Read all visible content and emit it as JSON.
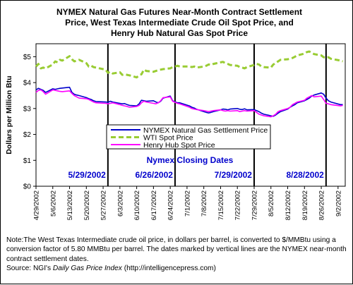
{
  "chart_data": {
    "type": "line",
    "title_lines": [
      "NYMEX Natural Gas Futures Near-Month Contract Settlement",
      "Price, West Texas Intermediate Crude Oil Spot Price, and",
      "Henry Hub Natural Gas Spot Price"
    ],
    "ylabel": "Dollars per Million Btu",
    "ylim": [
      0,
      5.5
    ],
    "y_ticks": [
      "$0",
      "$1",
      "$2",
      "$3",
      "$4",
      "$5"
    ],
    "y_tick_values": [
      0,
      1,
      2,
      3,
      4,
      5
    ],
    "x_tick_labels": [
      "4/29/2002",
      "5/6/2002",
      "5/13/2002",
      "5/20/2002",
      "5/27/2002",
      "6/3/2002",
      "6/10/2002",
      "6/17/2002",
      "6/24/2002",
      "7/1/2002",
      "7/8/2002",
      "7/15/2002",
      "7/22/2002",
      "7/29/2002",
      "8/5/2002",
      "8/12/2002",
      "8/19/2002",
      "8/26/2002",
      "9/2/2002"
    ],
    "x_range": [
      "4/29/2002",
      "9/5/2002"
    ],
    "x_tick_days": [
      0,
      7,
      14,
      21,
      28,
      35,
      42,
      49,
      56,
      63,
      70,
      77,
      84,
      91,
      98,
      105,
      112,
      119,
      126
    ],
    "x_end_day": 129,
    "grid": false,
    "legend_position": "center",
    "series": [
      {
        "name": "NYMEX Natural Gas Settlement Price",
        "color": "#0000cc",
        "style": "solid",
        "points": [
          [
            0,
            3.72
          ],
          [
            1,
            3.78
          ],
          [
            2,
            3.74
          ],
          [
            3,
            3.7
          ],
          [
            4,
            3.62
          ],
          [
            7,
            3.76
          ],
          [
            8,
            3.74
          ],
          [
            9,
            3.76
          ],
          [
            10,
            3.78
          ],
          [
            11,
            3.79
          ],
          [
            14,
            3.82
          ],
          [
            15,
            3.62
          ],
          [
            16,
            3.55
          ],
          [
            17,
            3.52
          ],
          [
            18,
            3.5
          ],
          [
            21,
            3.42
          ],
          [
            22,
            3.38
          ],
          [
            23,
            3.35
          ],
          [
            24,
            3.3
          ],
          [
            25,
            3.27
          ],
          [
            29,
            3.25
          ],
          [
            30,
            3.24
          ],
          [
            31,
            3.28
          ],
          [
            32,
            3.25
          ],
          [
            35,
            3.2
          ],
          [
            36,
            3.18
          ],
          [
            37,
            3.19
          ],
          [
            38,
            3.15
          ],
          [
            39,
            3.12
          ],
          [
            42,
            3.1
          ],
          [
            43,
            3.18
          ],
          [
            44,
            3.32
          ],
          [
            45,
            3.3
          ],
          [
            46,
            3.28
          ],
          [
            49,
            3.3
          ],
          [
            50,
            3.25
          ],
          [
            51,
            3.22
          ],
          [
            52,
            3.28
          ],
          [
            53,
            3.4
          ],
          [
            56,
            3.48
          ],
          [
            57,
            3.3
          ],
          [
            58,
            3.26
          ],
          [
            59,
            3.22
          ],
          [
            60,
            3.22
          ],
          [
            64,
            3.1
          ],
          [
            65,
            3.05
          ],
          [
            66,
            3.02
          ],
          [
            67,
            2.97
          ],
          [
            70,
            2.88
          ],
          [
            71,
            2.85
          ],
          [
            72,
            2.83
          ],
          [
            73,
            2.85
          ],
          [
            74,
            2.88
          ],
          [
            77,
            2.95
          ],
          [
            78,
            2.98
          ],
          [
            79,
            2.97
          ],
          [
            80,
            2.95
          ],
          [
            81,
            2.98
          ],
          [
            84,
            3.0
          ],
          [
            85,
            2.97
          ],
          [
            86,
            2.96
          ],
          [
            87,
            2.99
          ],
          [
            88,
            2.95
          ],
          [
            91,
            2.96
          ],
          [
            92,
            2.92
          ],
          [
            93,
            2.88
          ],
          [
            94,
            2.82
          ],
          [
            95,
            2.78
          ],
          [
            98,
            2.72
          ],
          [
            99,
            2.7
          ],
          [
            100,
            2.75
          ],
          [
            101,
            2.82
          ],
          [
            102,
            2.88
          ],
          [
            105,
            2.98
          ],
          [
            106,
            3.05
          ],
          [
            107,
            3.1
          ],
          [
            108,
            3.15
          ],
          [
            109,
            3.22
          ],
          [
            112,
            3.3
          ],
          [
            113,
            3.35
          ],
          [
            114,
            3.4
          ],
          [
            115,
            3.48
          ],
          [
            116,
            3.52
          ],
          [
            119,
            3.6
          ],
          [
            120,
            3.55
          ],
          [
            121,
            3.4
          ],
          [
            122,
            3.3
          ],
          [
            123,
            3.25
          ],
          [
            127,
            3.15
          ],
          [
            128,
            3.15
          ]
        ]
      },
      {
        "name": "WTI Spot Price",
        "color": "#99cc33",
        "style": "dashed",
        "points": [
          [
            0,
            4.62
          ],
          [
            1,
            4.72
          ],
          [
            2,
            4.55
          ],
          [
            3,
            4.58
          ],
          [
            4,
            4.55
          ],
          [
            7,
            4.7
          ],
          [
            8,
            4.82
          ],
          [
            9,
            4.78
          ],
          [
            10,
            4.88
          ],
          [
            11,
            4.85
          ],
          [
            14,
            5.02
          ],
          [
            15,
            4.9
          ],
          [
            16,
            4.82
          ],
          [
            17,
            4.85
          ],
          [
            18,
            4.88
          ],
          [
            21,
            4.75
          ],
          [
            22,
            4.62
          ],
          [
            23,
            4.65
          ],
          [
            24,
            4.6
          ],
          [
            25,
            4.58
          ],
          [
            29,
            4.5
          ],
          [
            30,
            4.38
          ],
          [
            31,
            4.42
          ],
          [
            32,
            4.35
          ],
          [
            35,
            4.4
          ],
          [
            36,
            4.3
          ],
          [
            37,
            4.32
          ],
          [
            38,
            4.3
          ],
          [
            39,
            4.28
          ],
          [
            42,
            4.2
          ],
          [
            43,
            4.28
          ],
          [
            44,
            4.32
          ],
          [
            45,
            4.5
          ],
          [
            46,
            4.45
          ],
          [
            49,
            4.42
          ],
          [
            50,
            4.45
          ],
          [
            51,
            4.48
          ],
          [
            52,
            4.5
          ],
          [
            53,
            4.52
          ],
          [
            56,
            4.55
          ],
          [
            57,
            4.6
          ],
          [
            58,
            4.62
          ],
          [
            59,
            4.65
          ],
          [
            60,
            4.62
          ],
          [
            64,
            4.62
          ],
          [
            65,
            4.6
          ],
          [
            66,
            4.62
          ],
          [
            67,
            4.58
          ],
          [
            70,
            4.62
          ],
          [
            71,
            4.65
          ],
          [
            72,
            4.7
          ],
          [
            73,
            4.68
          ],
          [
            74,
            4.72
          ],
          [
            77,
            4.78
          ],
          [
            78,
            4.8
          ],
          [
            79,
            4.75
          ],
          [
            80,
            4.72
          ],
          [
            81,
            4.68
          ],
          [
            84,
            4.65
          ],
          [
            85,
            4.6
          ],
          [
            86,
            4.58
          ],
          [
            87,
            4.55
          ],
          [
            88,
            4.6
          ],
          [
            91,
            4.68
          ],
          [
            92,
            4.72
          ],
          [
            93,
            4.7
          ],
          [
            94,
            4.62
          ],
          [
            95,
            4.6
          ],
          [
            98,
            4.58
          ],
          [
            99,
            4.7
          ],
          [
            100,
            4.75
          ],
          [
            101,
            4.82
          ],
          [
            102,
            4.88
          ],
          [
            105,
            4.9
          ],
          [
            106,
            4.92
          ],
          [
            107,
            4.95
          ],
          [
            108,
            5.0
          ],
          [
            109,
            5.05
          ],
          [
            112,
            5.12
          ],
          [
            113,
            5.18
          ],
          [
            114,
            5.2
          ],
          [
            115,
            5.15
          ],
          [
            116,
            5.1
          ],
          [
            119,
            5.05
          ],
          [
            120,
            4.98
          ],
          [
            121,
            4.95
          ],
          [
            122,
            4.98
          ],
          [
            123,
            4.92
          ],
          [
            127,
            4.85
          ],
          [
            128,
            4.82
          ]
        ]
      },
      {
        "name": "Henry Hub Spot Price",
        "color": "#ff00ff",
        "style": "solid",
        "points": [
          [
            0,
            3.62
          ],
          [
            1,
            3.7
          ],
          [
            2,
            3.72
          ],
          [
            3,
            3.65
          ],
          [
            4,
            3.55
          ],
          [
            7,
            3.72
          ],
          [
            8,
            3.7
          ],
          [
            9,
            3.68
          ],
          [
            10,
            3.66
          ],
          [
            11,
            3.65
          ],
          [
            14,
            3.68
          ],
          [
            15,
            3.58
          ],
          [
            16,
            3.5
          ],
          [
            17,
            3.45
          ],
          [
            18,
            3.4
          ],
          [
            21,
            3.38
          ],
          [
            22,
            3.35
          ],
          [
            23,
            3.3
          ],
          [
            24,
            3.25
          ],
          [
            25,
            3.22
          ],
          [
            29,
            3.2
          ],
          [
            30,
            3.18
          ],
          [
            31,
            3.2
          ],
          [
            32,
            3.22
          ],
          [
            35,
            3.15
          ],
          [
            36,
            3.12
          ],
          [
            37,
            3.1
          ],
          [
            38,
            3.08
          ],
          [
            39,
            3.05
          ],
          [
            42,
            3.08
          ],
          [
            43,
            3.12
          ],
          [
            44,
            3.22
          ],
          [
            45,
            3.28
          ],
          [
            46,
            3.25
          ],
          [
            49,
            3.2
          ],
          [
            50,
            3.18
          ],
          [
            51,
            3.22
          ],
          [
            52,
            3.3
          ],
          [
            53,
            3.42
          ],
          [
            56,
            3.45
          ],
          [
            57,
            3.28
          ],
          [
            58,
            3.24
          ],
          [
            59,
            3.2
          ],
          [
            60,
            3.18
          ],
          [
            64,
            3.05
          ],
          [
            65,
            3.0
          ],
          [
            66,
            2.98
          ],
          [
            67,
            2.96
          ],
          [
            70,
            2.92
          ],
          [
            71,
            2.9
          ],
          [
            72,
            2.88
          ],
          [
            73,
            2.9
          ],
          [
            74,
            2.92
          ],
          [
            77,
            2.95
          ],
          [
            78,
            2.92
          ],
          [
            79,
            2.9
          ],
          [
            80,
            2.92
          ],
          [
            81,
            2.9
          ],
          [
            84,
            2.92
          ],
          [
            85,
            2.88
          ],
          [
            86,
            2.9
          ],
          [
            87,
            2.92
          ],
          [
            88,
            2.9
          ],
          [
            91,
            2.92
          ],
          [
            92,
            2.85
          ],
          [
            93,
            2.78
          ],
          [
            94,
            2.75
          ],
          [
            95,
            2.72
          ],
          [
            98,
            2.68
          ],
          [
            99,
            2.72
          ],
          [
            100,
            2.78
          ],
          [
            101,
            2.88
          ],
          [
            102,
            2.92
          ],
          [
            105,
            3.0
          ],
          [
            106,
            3.05
          ],
          [
            107,
            3.15
          ],
          [
            108,
            3.2
          ],
          [
            109,
            3.25
          ],
          [
            112,
            3.32
          ],
          [
            113,
            3.4
          ],
          [
            114,
            3.45
          ],
          [
            115,
            3.5
          ],
          [
            116,
            3.45
          ],
          [
            119,
            3.48
          ],
          [
            120,
            3.35
          ],
          [
            121,
            3.2
          ],
          [
            122,
            3.18
          ],
          [
            123,
            3.15
          ],
          [
            127,
            3.1
          ],
          [
            128,
            3.12
          ]
        ]
      }
    ],
    "vertical_lines": [
      {
        "label": "5/29/2002",
        "day": 30
      },
      {
        "label": "6/26/2002",
        "day": 58
      },
      {
        "label": "7/29/2002",
        "day": 91
      },
      {
        "label": "8/28/2002",
        "day": 121
      }
    ],
    "annotations": {
      "closing_dates_label": "Nymex Closing Dates"
    }
  },
  "note": {
    "paragraph": "Note:The West Texas Intermediate crude oil price, in dollars per barrel,  is converted to $/MMBtu using a conversion factor of 5.80 MMBtu per barrel.  The dates marked by vertical lines are the NYMEX near-month contract settlement dates.",
    "source_prefix": "Source:  NGI's ",
    "source_italic": "Daily Gas Price Index",
    "source_suffix": " (http://intelligencepress.com)"
  }
}
